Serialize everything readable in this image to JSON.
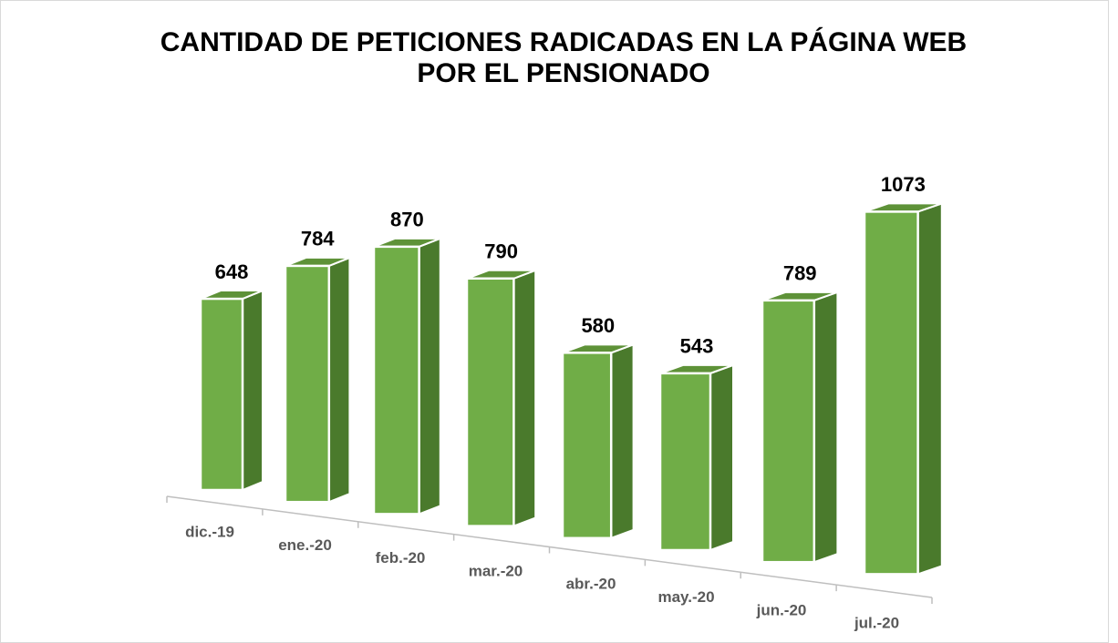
{
  "chart_data": {
    "type": "bar3d",
    "title": [
      "CANTIDAD DE PETICIONES RADICADAS EN LA PÁGINA WEB",
      "POR EL PENSIONADO"
    ],
    "categories": [
      "dic.-19",
      "ene.-20",
      "feb.-20",
      "mar.-20",
      "abr.-20",
      "may.-20",
      "jun.-20",
      "jul.-20"
    ],
    "values": [
      648,
      784,
      870,
      790,
      580,
      543,
      789,
      1073
    ],
    "color": "#70ad47"
  }
}
